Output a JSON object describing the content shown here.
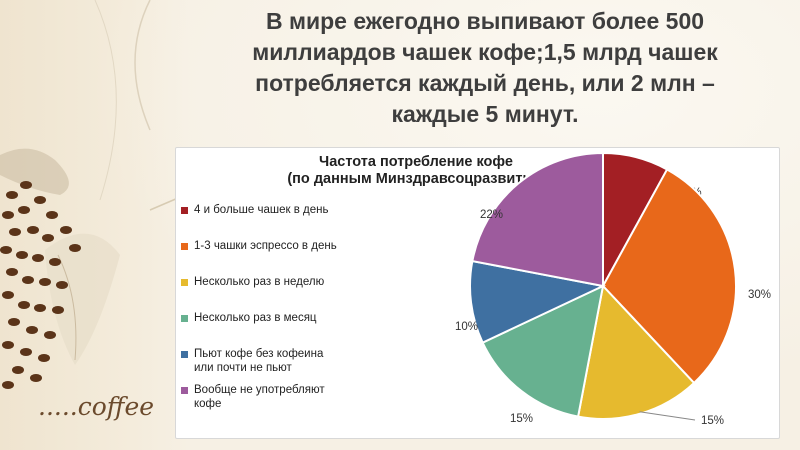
{
  "headline": "В мире ежегодно выпивают более 500\nмиллиардов чашек кофе;1,5 млрд чашек\nпотребляется  каждый день, или 2 млн –\nкаждые 5 минут.",
  "decor": {
    "coffee_text": ".....coffee"
  },
  "chart_data": {
    "type": "pie",
    "title_line1": "Частота потребление кофе",
    "title_line2": "(по данным Минздравсоцразвития)",
    "legend_position": "left",
    "categories": [
      "4 и больше чашек в день",
      "1-3 чашки эспрессо в день",
      "Несколько раз в неделю",
      "Несколько раз в месяц",
      "Пьют кофе без кофеина\nили почти не пьют",
      "Вообще не употребляют\nкофе"
    ],
    "values": [
      8,
      30,
      15,
      15,
      10,
      22
    ],
    "labels": [
      "8%",
      "30%",
      "15%",
      "15%",
      "10%",
      "22%"
    ],
    "colors": [
      "#a31f24",
      "#e8681a",
      "#e6ba2e",
      "#67b190",
      "#3f70a1",
      "#9d5b9d"
    ]
  }
}
